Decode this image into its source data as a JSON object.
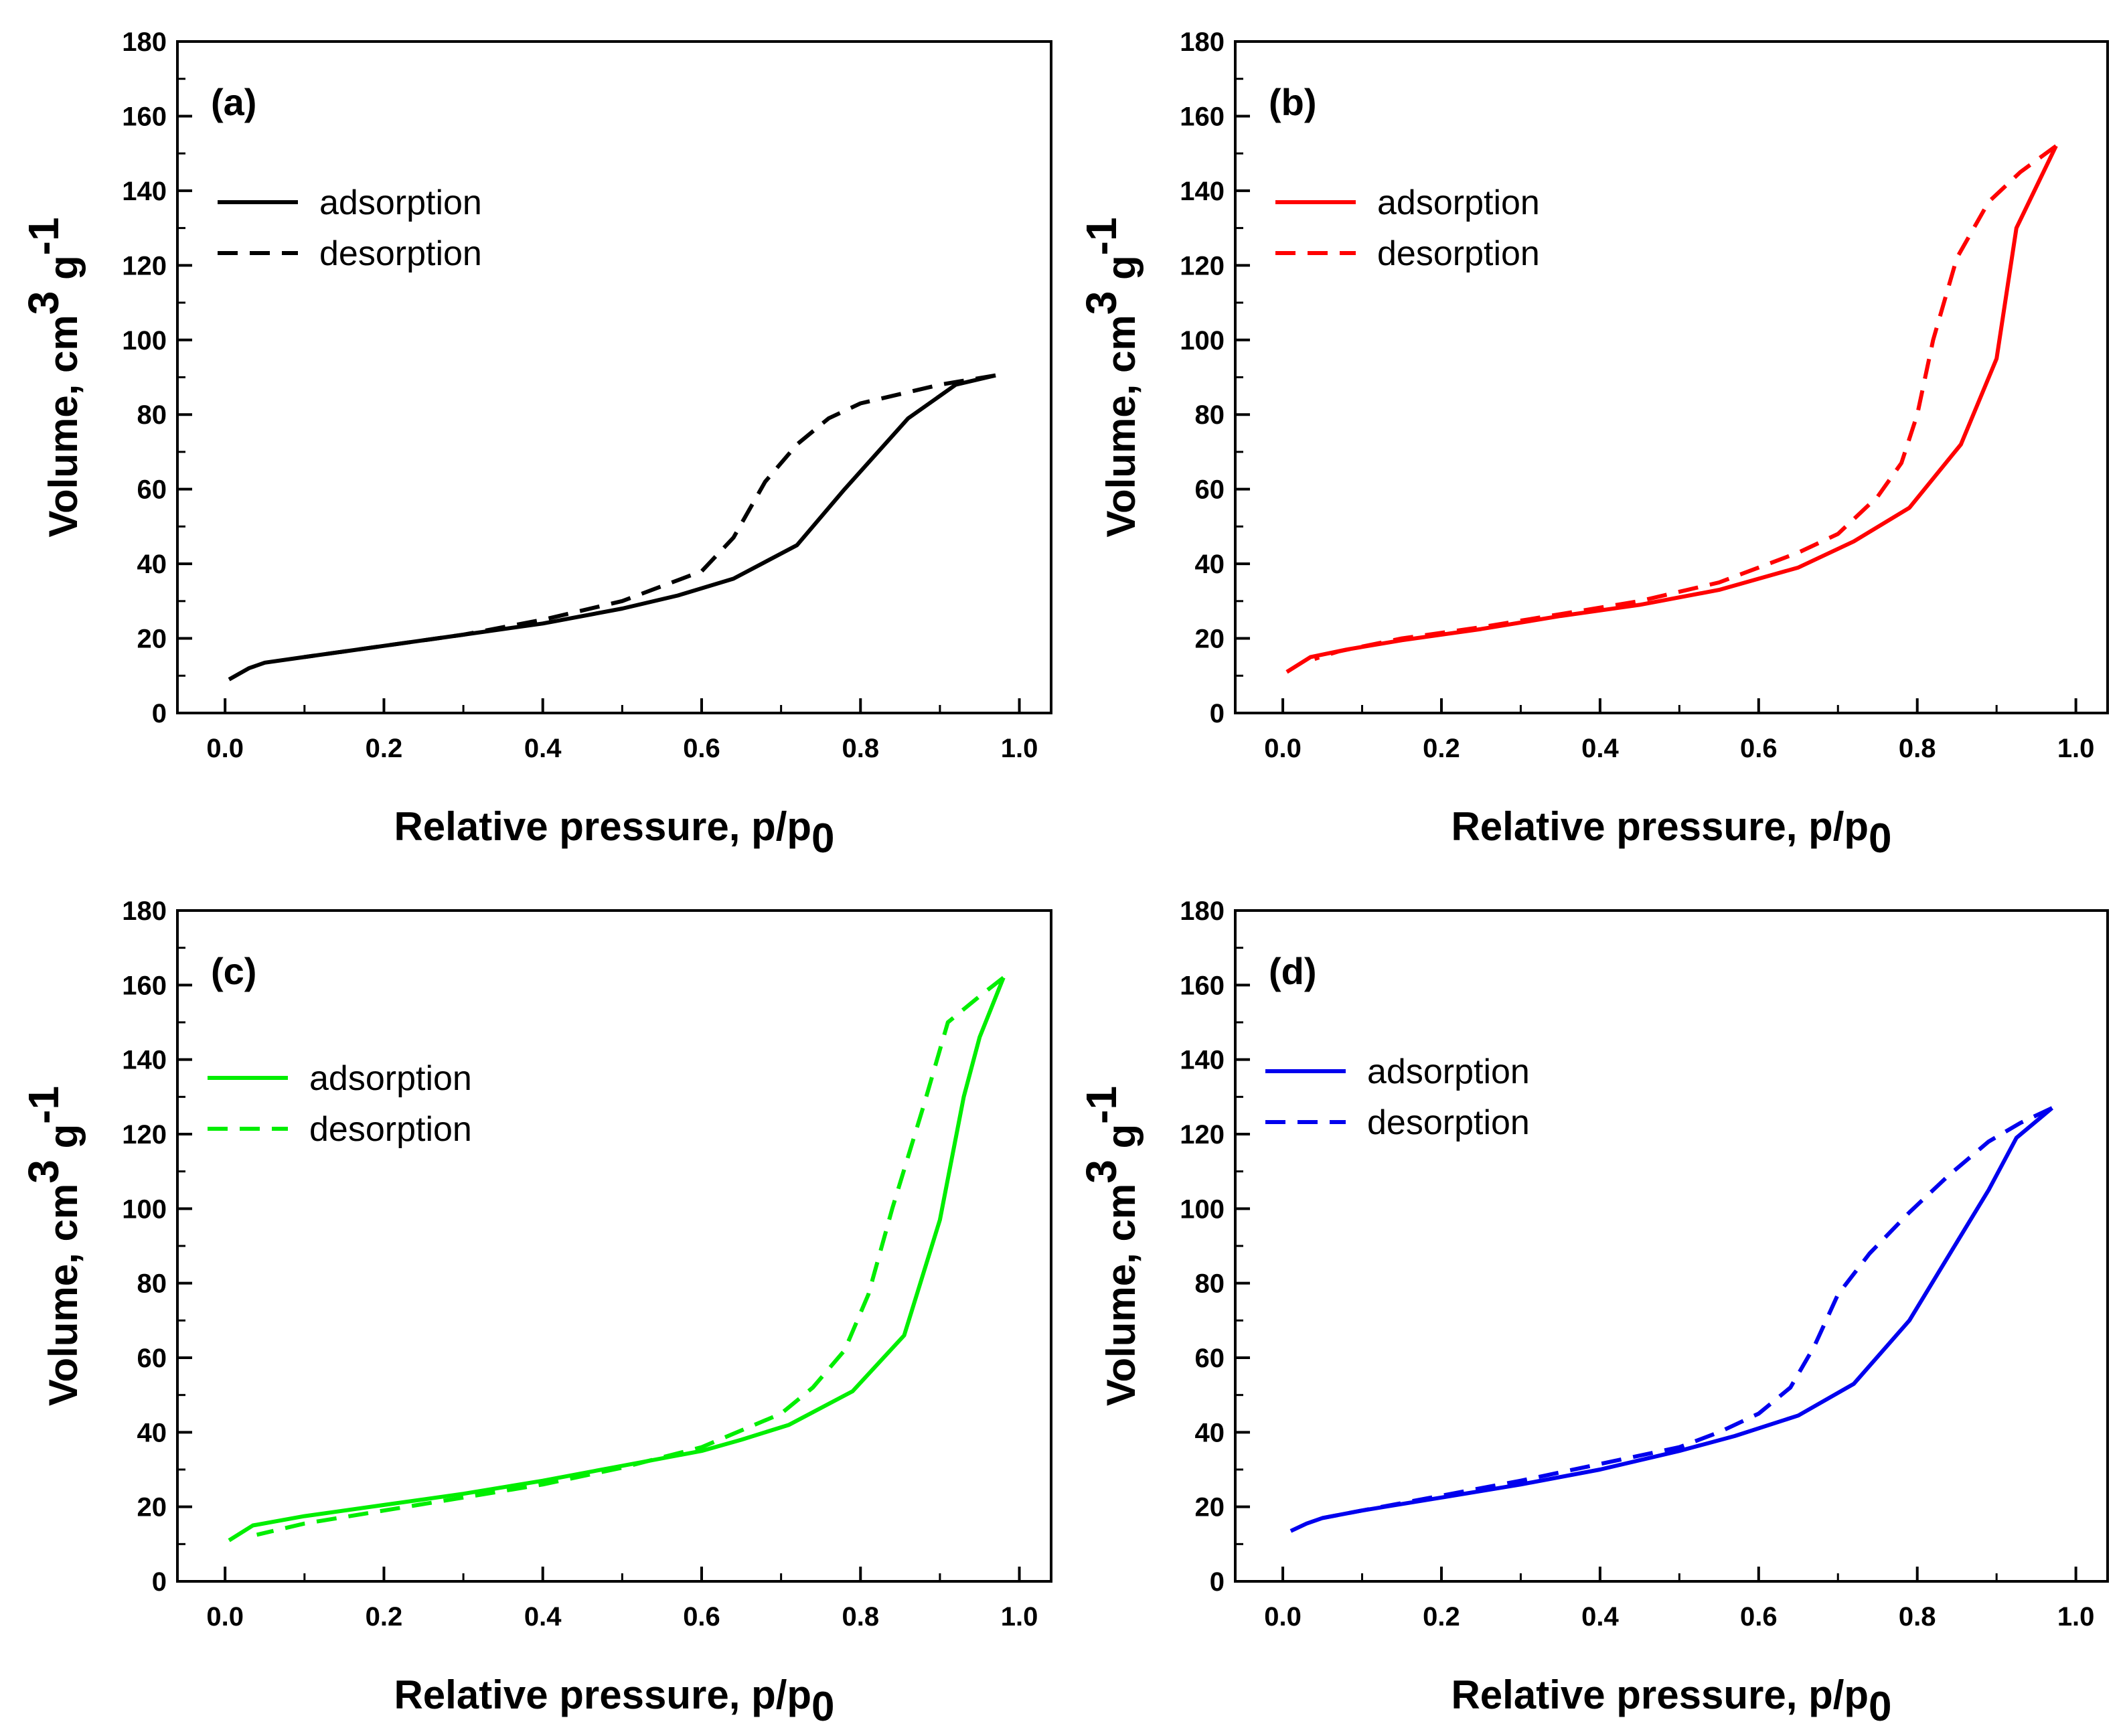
{
  "chart_data": [
    {
      "type": "line",
      "panel_label": "(a)",
      "color": "#000000",
      "xlabel": "Relative pressure, p/p",
      "xlabel_sub": "0",
      "ylabel": "Volume, cm",
      "ylabel_sup1": "3",
      "ylabel_mid": " g",
      "ylabel_sup2": "-1",
      "xlim": [
        -0.06,
        1.04
      ],
      "ylim": [
        0,
        180
      ],
      "xticks": [
        "0.0",
        "0.2",
        "0.4",
        "0.6",
        "0.8",
        "1.0"
      ],
      "yticks": [
        "0",
        "20",
        "40",
        "60",
        "80",
        "100",
        "120",
        "140",
        "160",
        "180"
      ],
      "legend": {
        "position": "upper-left",
        "entries": [
          "adsorption",
          "desorption"
        ]
      },
      "series": [
        {
          "name": "adsorption",
          "style": "solid",
          "x": [
            0.005,
            0.03,
            0.05,
            0.1,
            0.2,
            0.3,
            0.4,
            0.5,
            0.57,
            0.64,
            0.72,
            0.78,
            0.86,
            0.92,
            0.97
          ],
          "y": [
            9,
            12,
            13.5,
            15,
            18,
            21,
            24,
            28,
            31.5,
            36,
            45,
            60,
            79,
            88,
            90.5
          ]
        },
        {
          "name": "desorption",
          "style": "dashed",
          "x": [
            0.97,
            0.9,
            0.86,
            0.8,
            0.76,
            0.72,
            0.68,
            0.64,
            0.6,
            0.55,
            0.5,
            0.4,
            0.3,
            0.2,
            0.1
          ],
          "y": [
            90.5,
            88,
            86,
            83,
            79,
            72,
            62,
            47,
            38,
            34,
            30,
            25,
            21,
            18,
            15
          ]
        }
      ]
    },
    {
      "type": "line",
      "panel_label": "(b)",
      "color": "#ff0000",
      "xlabel": "Relative pressure, p/p",
      "xlabel_sub": "0",
      "ylabel": "Volume, cm",
      "ylabel_sup1": "3",
      "ylabel_mid": " g",
      "ylabel_sup2": "-1",
      "xlim": [
        -0.06,
        1.04
      ],
      "ylim": [
        0,
        180
      ],
      "xticks": [
        "0.0",
        "0.2",
        "0.4",
        "0.6",
        "0.8",
        "1.0"
      ],
      "yticks": [
        "0",
        "20",
        "40",
        "60",
        "80",
        "100",
        "120",
        "140",
        "160",
        "180"
      ],
      "legend": {
        "position": "upper-left",
        "entries": [
          "adsorption",
          "desorption"
        ]
      },
      "series": [
        {
          "name": "adsorption",
          "style": "solid",
          "x": [
            0.005,
            0.035,
            0.08,
            0.15,
            0.25,
            0.35,
            0.45,
            0.55,
            0.65,
            0.72,
            0.79,
            0.855,
            0.9,
            0.925,
            0.975
          ],
          "y": [
            11,
            15,
            17,
            19.5,
            22.5,
            26,
            29,
            33,
            39,
            46,
            55,
            72,
            95,
            130,
            152
          ]
        },
        {
          "name": "desorption",
          "style": "dashed",
          "x": [
            0.975,
            0.93,
            0.89,
            0.85,
            0.82,
            0.8,
            0.78,
            0.75,
            0.7,
            0.65,
            0.55,
            0.45,
            0.35,
            0.25,
            0.15,
            0.07,
            0.04
          ],
          "y": [
            152,
            145,
            137,
            122,
            100,
            80,
            67,
            58,
            48,
            43,
            35,
            30,
            26.5,
            23,
            20,
            16.5,
            14.5
          ]
        }
      ]
    },
    {
      "type": "line",
      "panel_label": "(c)",
      "color": "#00ee00",
      "xlabel": "Relative pressure, p/p",
      "xlabel_sub": "0",
      "ylabel": "Volume, cm",
      "ylabel_sup1": "3",
      "ylabel_mid": " g",
      "ylabel_sup2": "-1",
      "xlim": [
        -0.06,
        1.04
      ],
      "ylim": [
        0,
        180
      ],
      "xticks": [
        "0.0",
        "0.2",
        "0.4",
        "0.6",
        "0.8",
        "1.0"
      ],
      "yticks": [
        "0",
        "20",
        "40",
        "60",
        "80",
        "100",
        "120",
        "140",
        "160",
        "180"
      ],
      "legend": {
        "position": "upper-left",
        "entries": [
          "adsorption",
          "desorption"
        ]
      },
      "series": [
        {
          "name": "adsorption",
          "style": "solid",
          "x": [
            0.005,
            0.035,
            0.1,
            0.2,
            0.3,
            0.4,
            0.5,
            0.6,
            0.65,
            0.71,
            0.79,
            0.855,
            0.9,
            0.93,
            0.95,
            0.98
          ],
          "y": [
            11,
            15,
            17.5,
            20.5,
            23.5,
            27,
            31,
            35,
            38,
            42,
            51,
            66,
            97,
            130,
            146,
            162
          ]
        },
        {
          "name": "desorption",
          "style": "dashed",
          "x": [
            0.98,
            0.95,
            0.91,
            0.88,
            0.84,
            0.81,
            0.78,
            0.74,
            0.7,
            0.6,
            0.5,
            0.4,
            0.3,
            0.2,
            0.1,
            0.04
          ],
          "y": [
            162,
            157,
            150,
            128,
            100,
            77,
            62,
            52,
            45,
            36,
            30.5,
            26,
            22.5,
            19,
            15.5,
            12.5
          ]
        }
      ]
    },
    {
      "type": "line",
      "panel_label": "(d)",
      "color": "#0000ee",
      "xlabel": "Relative pressure, p/p",
      "xlabel_sub": "0",
      "ylabel": "Volume, cm",
      "ylabel_sup1": "3",
      "ylabel_mid": " g",
      "ylabel_sup2": "-1",
      "xlim": [
        -0.06,
        1.04
      ],
      "ylim": [
        0,
        180
      ],
      "xticks": [
        "0.0",
        "0.2",
        "0.4",
        "0.6",
        "0.8",
        "1.0"
      ],
      "yticks": [
        "0",
        "20",
        "40",
        "60",
        "80",
        "100",
        "120",
        "140",
        "160",
        "180"
      ],
      "legend": {
        "position": "upper-left",
        "entries": [
          "adsorption",
          "desorption"
        ]
      },
      "series": [
        {
          "name": "adsorption",
          "style": "solid",
          "x": [
            0.01,
            0.03,
            0.05,
            0.1,
            0.2,
            0.3,
            0.4,
            0.5,
            0.57,
            0.65,
            0.72,
            0.79,
            0.85,
            0.89,
            0.925,
            0.97
          ],
          "y": [
            13.5,
            15.5,
            17,
            19,
            22.5,
            26,
            30,
            35,
            39,
            44.5,
            53,
            70,
            91,
            105,
            119,
            127
          ]
        },
        {
          "name": "desorption",
          "style": "dashed",
          "x": [
            0.97,
            0.93,
            0.89,
            0.84,
            0.79,
            0.74,
            0.7,
            0.67,
            0.64,
            0.6,
            0.55,
            0.5,
            0.4,
            0.3,
            0.2,
            0.1,
            0.05
          ],
          "y": [
            127,
            123,
            118,
            109,
            99,
            88,
            77,
            63,
            52,
            45,
            40,
            36,
            31.5,
            27,
            23,
            19,
            17
          ]
        }
      ]
    }
  ]
}
